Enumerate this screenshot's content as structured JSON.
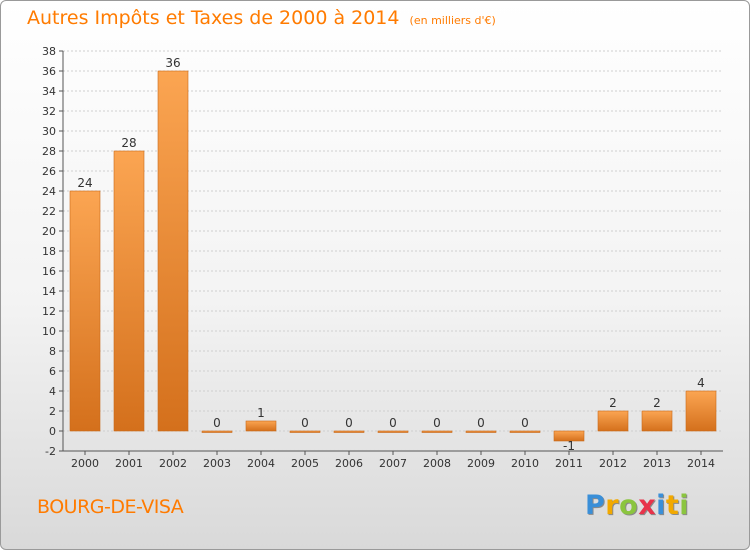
{
  "title": {
    "main": "Autres Impôts et Taxes de 2000 à 2014",
    "unit": "(en milliers d'€)"
  },
  "commune": "BOURG-DE-VISA",
  "logo": {
    "letters": [
      "P",
      "r",
      "o",
      "x",
      "i",
      "t",
      "i"
    ],
    "colors": [
      "#3a8fd8",
      "#f2a900",
      "#8bc53f",
      "#e8334a",
      "#3a8fd8",
      "#f2a900",
      "#8bc53f"
    ]
  },
  "colors": {
    "accent": "#ff7b00",
    "bar_light": "#fba552",
    "bar_dark": "#d4701c",
    "grid": "#cfcfcf",
    "axis": "#555555"
  },
  "chart_data": {
    "type": "bar",
    "categories": [
      "2000",
      "2001",
      "2002",
      "2003",
      "2004",
      "2005",
      "2006",
      "2007",
      "2008",
      "2009",
      "2010",
      "2011",
      "2012",
      "2013",
      "2014"
    ],
    "values": [
      24,
      28,
      36,
      0,
      1,
      0,
      0,
      0,
      0,
      0,
      0,
      -1,
      2,
      2,
      4
    ],
    "data_labels": [
      "24",
      "28",
      "36",
      "0",
      "1",
      "0",
      "0",
      "0",
      "0",
      "0",
      "0",
      "-1",
      "2",
      "2",
      "4"
    ],
    "ylim": [
      -2,
      38
    ],
    "yticks": [
      "-2",
      "0",
      "2",
      "4",
      "6",
      "8",
      "10",
      "12",
      "14",
      "16",
      "18",
      "20",
      "22",
      "24",
      "26",
      "28",
      "30",
      "32",
      "34",
      "36",
      "38"
    ],
    "grid": true,
    "xlabel": "",
    "ylabel": ""
  }
}
